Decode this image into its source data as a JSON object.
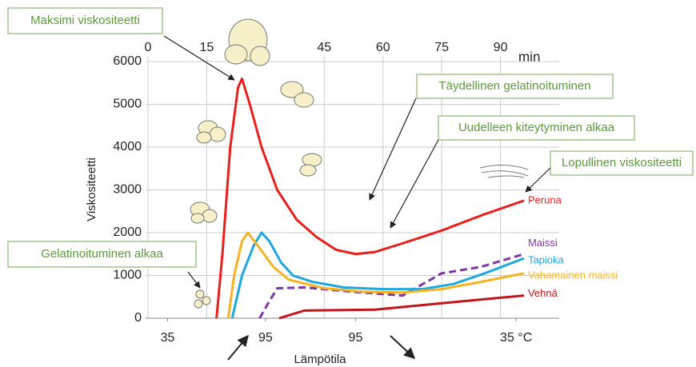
{
  "chart_data": {
    "type": "line",
    "y_label": "Viskositeetti",
    "x_label": "Lämpötila",
    "x_unit": "min",
    "ylim": [
      0,
      6000
    ],
    "yticks": [
      0,
      1000,
      2000,
      3000,
      4000,
      5000,
      6000
    ],
    "xlim": [
      0,
      105
    ],
    "xticks": [
      0,
      15,
      45,
      60,
      75,
      90
    ],
    "temperature_ticks": [
      {
        "value": 5,
        "label": "35"
      },
      {
        "value": 30,
        "label": "95"
      },
      {
        "value": 53,
        "label": "95"
      },
      {
        "value": 94,
        "label": "35 °C"
      }
    ],
    "grid": true,
    "series": [
      {
        "name": "Peruna",
        "color": "#e8201c",
        "dashed": false,
        "x": [
          17.5,
          19,
          21,
          23,
          24,
          26,
          29,
          33,
          38,
          43,
          48,
          53,
          58,
          65,
          75,
          85,
          96
        ],
        "values": [
          0,
          1500,
          4000,
          5400,
          5600,
          5000,
          4000,
          3000,
          2300,
          1900,
          1600,
          1500,
          1550,
          1750,
          2050,
          2400,
          2750
        ]
      },
      {
        "name": "Maissi",
        "color": "#7f35a8",
        "dashed": true,
        "x": [
          28.5,
          31,
          33,
          40,
          52,
          65,
          75,
          85,
          96
        ],
        "values": [
          0,
          400,
          700,
          720,
          620,
          530,
          1050,
          1200,
          1500
        ]
      },
      {
        "name": "Tapioka",
        "color": "#1fa8e0",
        "dashed": false,
        "x": [
          21.5,
          24,
          27,
          29,
          31,
          34,
          37,
          42,
          50,
          60,
          70,
          78,
          86,
          96
        ],
        "values": [
          0,
          1000,
          1700,
          2000,
          1800,
          1300,
          1000,
          850,
          720,
          680,
          680,
          800,
          1050,
          1400
        ]
      },
      {
        "name": "Vahamainen maissi",
        "color": "#f5b323",
        "dashed": false,
        "x": [
          20.5,
          22,
          24,
          25.5,
          28,
          32,
          36,
          45,
          55,
          65,
          75,
          85,
          96
        ],
        "values": [
          0,
          1000,
          1800,
          2000,
          1700,
          1200,
          900,
          700,
          620,
          600,
          680,
          850,
          1050
        ]
      },
      {
        "name": "Vehnä",
        "color": "#c0161b",
        "dashed": false,
        "x": [
          33.5,
          40,
          58,
          75,
          96
        ],
        "values": [
          0,
          180,
          200,
          350,
          530
        ]
      }
    ],
    "annotations": [
      "Maksimi viskositeetti",
      "Täydellinen gelatinoituminen",
      "Uudelleen kiteytyminen alkaa",
      "Lopullinen viskositeetti",
      "Gelatinoituminen alkaa"
    ]
  }
}
